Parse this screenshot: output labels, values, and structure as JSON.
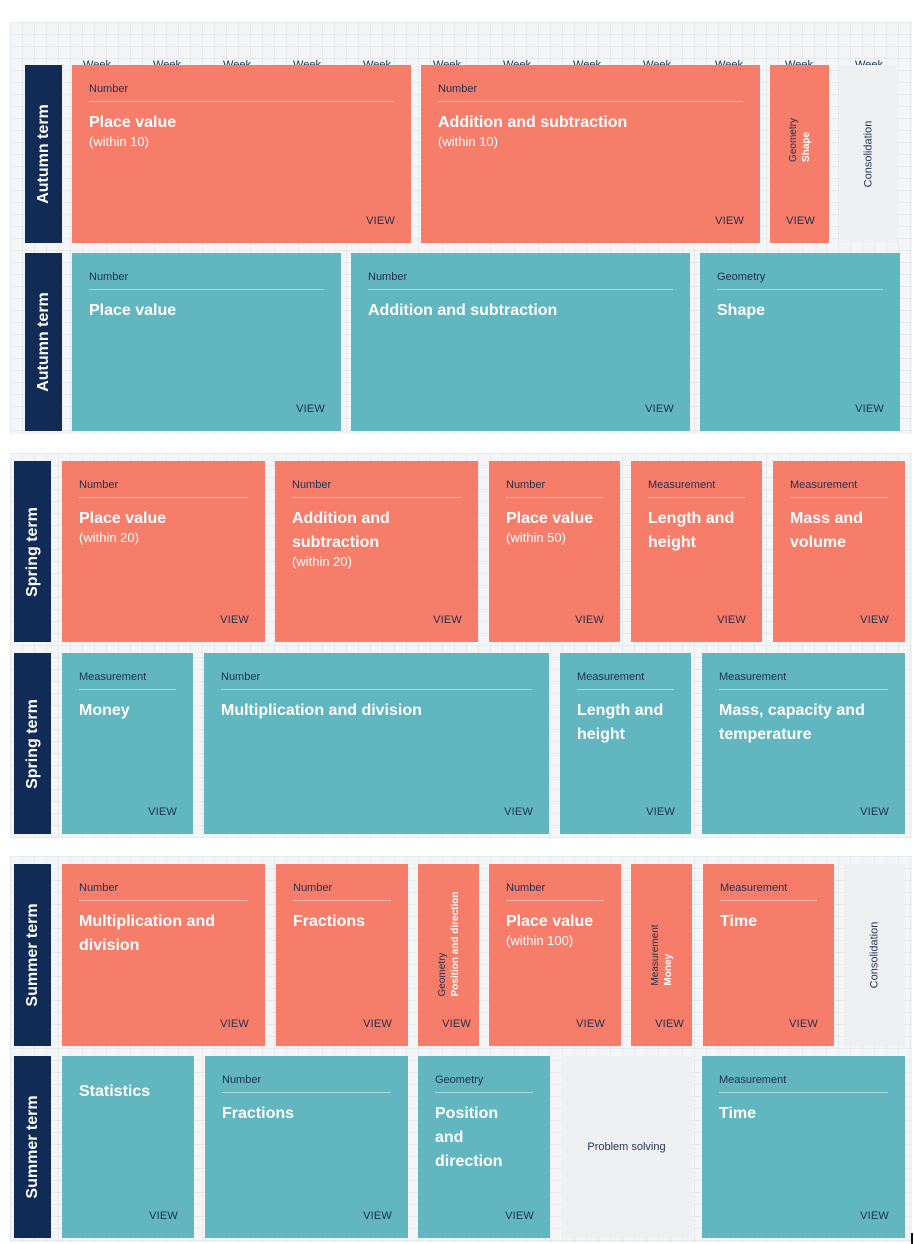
{
  "weeks": [
    "Week 1",
    "Week 2",
    "Week 3",
    "Week 4",
    "Week 5",
    "Week 6",
    "Week 7",
    "Week 8",
    "Week 9",
    "Week 10",
    "Week 11",
    "Week 12"
  ],
  "view_label": "VIEW",
  "colors": {
    "term_bg": "#0f2b56",
    "red": "#f77d6b",
    "teal": "#61b6c0",
    "grey": "#eef0f2"
  },
  "autumn": {
    "term_label": "Autumn term",
    "row1": {
      "card1": {
        "category": "Number",
        "title": "Place value",
        "subtitle": "(within 10)"
      },
      "card2": {
        "category": "Number",
        "title": "Addition and subtraction",
        "subtitle": "(within 10)"
      },
      "card3": {
        "category": "Geometry",
        "title": "Shape"
      },
      "card4": {
        "title": "Consolidation"
      }
    },
    "row2": {
      "card1": {
        "category": "Number",
        "title": "Place value"
      },
      "card2": {
        "category": "Number",
        "title": "Addition and subtraction"
      },
      "card3": {
        "category": "Geometry",
        "title": "Shape"
      }
    }
  },
  "spring": {
    "term_label": "Spring term",
    "row1": {
      "card1": {
        "category": "Number",
        "title": "Place value",
        "subtitle": "(within 20)"
      },
      "card2": {
        "category": "Number",
        "title_line1": "Addition and",
        "title_line2": "subtraction",
        "subtitle": "(within 20)"
      },
      "card3": {
        "category": "Number",
        "title": "Place value",
        "subtitle": "(within 50)"
      },
      "card4": {
        "category": "Measurement",
        "title_line1": "Length and",
        "title_line2": "height"
      },
      "card5": {
        "category": "Measurement",
        "title_line1": "Mass and",
        "title_line2": "volume"
      }
    },
    "row2": {
      "card1": {
        "category": "Measurement",
        "title": "Money"
      },
      "card2": {
        "category": "Number",
        "title": "Multiplication and division"
      },
      "card3": {
        "category": "Measurement",
        "title_line1": "Length and",
        "title_line2": "height"
      },
      "card4": {
        "category": "Measurement",
        "title_line1": "Mass, capacity and",
        "title_line2": "temperature"
      }
    }
  },
  "summer": {
    "term_label": "Summer term",
    "row1": {
      "card1": {
        "category": "Number",
        "title_line1": "Multiplication and",
        "title_line2": "division"
      },
      "card2": {
        "category": "Number",
        "title": "Fractions"
      },
      "card3": {
        "category": "Geometry",
        "title": "Position and direction"
      },
      "card4": {
        "category": "Number",
        "title": "Place value",
        "subtitle": "(within 100)"
      },
      "card5": {
        "category": "Measurement",
        "title": "Money"
      },
      "card6": {
        "category": "Measurement",
        "title": "Time"
      },
      "card7": {
        "title": "Consolidation"
      }
    },
    "row2": {
      "card1": {
        "title": "Statistics"
      },
      "card2": {
        "category": "Number",
        "title": "Fractions"
      },
      "card3": {
        "category": "Geometry",
        "title_line1": "Position",
        "title_line2": "and",
        "title_line3": "direction"
      },
      "card4": {
        "title": "Problem solving"
      },
      "card5": {
        "category": "Measurement",
        "title": "Time"
      }
    }
  }
}
